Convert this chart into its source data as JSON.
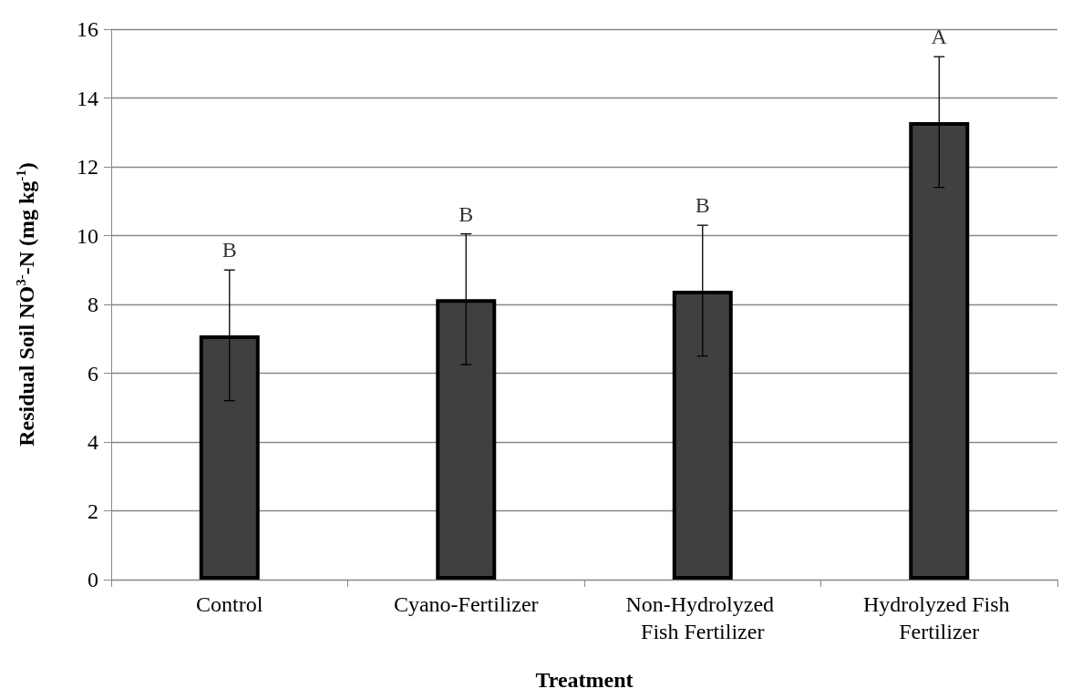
{
  "chart_data": {
    "type": "bar",
    "xlabel": "Treatment",
    "ylabel": "Residual Soil NO$^{3-}$-N (mg kg$^{-1}$)",
    "categories": [
      "Control",
      "Cyano-Fertilizer",
      "Non-Hydrolyzed Fish Fertilizer",
      "Hydrolyzed Fish Fertilizer"
    ],
    "values": [
      7.1,
      8.15,
      8.4,
      13.3
    ],
    "errors": [
      [
        5.2,
        9.0
      ],
      [
        6.25,
        10.05
      ],
      [
        6.5,
        10.3
      ],
      [
        11.4,
        15.2
      ]
    ],
    "color": "#404040",
    "ylim": [
      0,
      16
    ],
    "yticks": [
      0,
      2,
      4,
      6,
      8,
      10,
      12,
      14,
      16
    ],
    "grid": "y",
    "annotations": [
      {
        "text": "B",
        "x": "Control",
        "y": 9.0
      },
      {
        "text": "B",
        "x": "Cyano-Fertilizer",
        "y": 10.05
      },
      {
        "text": "B",
        "x": "Non-Hydrolyzed Fish Fertilizer",
        "y": 10.3
      },
      {
        "text": "A",
        "x": "Hydrolyzed Fish Fertilizer",
        "y": 15.2
      }
    ]
  }
}
